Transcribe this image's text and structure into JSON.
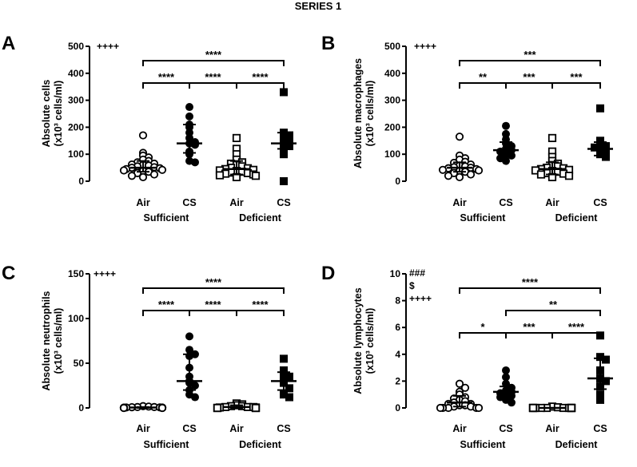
{
  "figure": {
    "title": "SERIES 1"
  },
  "chart_data": [
    {
      "panel": "A",
      "type": "scatter",
      "ylabel_line1": "Absolute cells",
      "ylabel_line2": "(x10³ cells/ml)",
      "ylim": [
        0,
        500
      ],
      "yticks": [
        0,
        100,
        200,
        300,
        400,
        500
      ],
      "x_labels": [
        "Air",
        "CS",
        "Air",
        "CS"
      ],
      "group_labels": [
        "Sufficient",
        "Deficient"
      ],
      "corner_annotations": [
        "++++"
      ],
      "series": [
        {
          "marker": "open-circle",
          "median": 50,
          "lower": 35,
          "upper": 75,
          "values": [
            170,
            105,
            95,
            88,
            80,
            75,
            70,
            65,
            62,
            60,
            58,
            55,
            52,
            50,
            48,
            45,
            42,
            40,
            38,
            35,
            30,
            25,
            20,
            15
          ]
        },
        {
          "marker": "filled-circle",
          "median": 140,
          "lower": 105,
          "upper": 210,
          "values": [
            275,
            240,
            210,
            200,
            180,
            160,
            145,
            140,
            135,
            110,
            100,
            75,
            70
          ]
        },
        {
          "marker": "open-square",
          "median": 45,
          "lower": 25,
          "upper": 75,
          "values": [
            160,
            120,
            100,
            80,
            70,
            65,
            60,
            55,
            50,
            48,
            45,
            42,
            40,
            38,
            35,
            32,
            30,
            28,
            25,
            22,
            20,
            15
          ]
        },
        {
          "marker": "filled-square",
          "median": 140,
          "lower": 120,
          "upper": 180,
          "values": [
            330,
            180,
            170,
            160,
            150,
            140,
            130,
            115,
            100,
            0
          ]
        }
      ],
      "brackets": [
        {
          "from": 0,
          "to": 3,
          "level": 4,
          "label": "****"
        },
        {
          "from": 0,
          "to": 1,
          "level": 3,
          "label": "****"
        },
        {
          "from": 1,
          "to": 2,
          "level": 3,
          "label": "****"
        },
        {
          "from": 2,
          "to": 3,
          "level": 3,
          "label": "****"
        }
      ]
    },
    {
      "panel": "B",
      "type": "scatter",
      "ylabel_line1": "Absolute macrophages",
      "ylabel_line2": "(x10³ cells/ml)",
      "ylim": [
        0,
        500
      ],
      "yticks": [
        0,
        100,
        200,
        300,
        400,
        500
      ],
      "x_labels": [
        "Air",
        "CS",
        "Air",
        "CS"
      ],
      "group_labels": [
        "Sufficient",
        "Deficient"
      ],
      "corner_annotations": [
        "++++"
      ],
      "series": [
        {
          "marker": "open-circle",
          "median": 50,
          "lower": 35,
          "upper": 70,
          "values": [
            165,
            95,
            85,
            80,
            72,
            68,
            62,
            58,
            55,
            52,
            50,
            48,
            45,
            42,
            40,
            38,
            35,
            30,
            25,
            20,
            15
          ]
        },
        {
          "marker": "filled-circle",
          "median": 115,
          "lower": 90,
          "upper": 145,
          "values": [
            205,
            175,
            155,
            140,
            130,
            120,
            115,
            110,
            100,
            95,
            85,
            75
          ]
        },
        {
          "marker": "open-square",
          "median": 45,
          "lower": 25,
          "upper": 70,
          "values": [
            160,
            110,
            90,
            75,
            65,
            60,
            55,
            50,
            48,
            45,
            42,
            40,
            38,
            35,
            30,
            28,
            25,
            20,
            15
          ]
        },
        {
          "marker": "filled-square",
          "median": 120,
          "lower": 95,
          "upper": 145,
          "values": [
            270,
            150,
            140,
            130,
            125,
            120,
            110,
            100,
            90
          ]
        }
      ],
      "brackets": [
        {
          "from": 0,
          "to": 3,
          "level": 4,
          "label": "***"
        },
        {
          "from": 0,
          "to": 1,
          "level": 3,
          "label": "**"
        },
        {
          "from": 1,
          "to": 2,
          "level": 3,
          "label": "***"
        },
        {
          "from": 2,
          "to": 3,
          "level": 3,
          "label": "***"
        }
      ]
    },
    {
      "panel": "C",
      "type": "scatter",
      "ylabel_line1": "Absolute neutrophils",
      "ylabel_line2": "(x10³ cells/ml)",
      "ylim": [
        0,
        150
      ],
      "yticks": [
        0,
        50,
        100,
        150
      ],
      "x_labels": [
        "Air",
        "CS",
        "Air",
        "CS"
      ],
      "group_labels": [
        "Sufficient",
        "Deficient"
      ],
      "corner_annotations": [
        "++++"
      ],
      "series": [
        {
          "marker": "open-circle",
          "median": 0.5,
          "lower": 0,
          "upper": 1,
          "values": [
            2,
            1.5,
            1,
            1,
            0.8,
            0.6,
            0.5,
            0.5,
            0.4,
            0.3,
            0.2,
            0.1,
            0,
            0,
            0,
            0,
            0,
            0,
            0,
            0
          ]
        },
        {
          "marker": "filled-circle",
          "median": 30,
          "lower": 20,
          "upper": 60,
          "values": [
            80,
            65,
            60,
            58,
            45,
            35,
            30,
            28,
            25,
            20,
            15,
            12
          ]
        },
        {
          "marker": "open-square",
          "median": 1,
          "lower": 0,
          "upper": 3,
          "values": [
            5,
            4,
            3,
            2,
            2,
            1,
            1,
            1,
            0.5,
            0.5,
            0,
            0,
            0,
            0,
            0,
            0
          ]
        },
        {
          "marker": "filled-square",
          "median": 30,
          "lower": 20,
          "upper": 40,
          "values": [
            55,
            42,
            38,
            35,
            30,
            28,
            22,
            15,
            12
          ]
        }
      ],
      "brackets": [
        {
          "from": 0,
          "to": 3,
          "level": 4,
          "label": "****"
        },
        {
          "from": 0,
          "to": 1,
          "level": 3,
          "label": "****"
        },
        {
          "from": 1,
          "to": 2,
          "level": 3,
          "label": "****"
        },
        {
          "from": 2,
          "to": 3,
          "level": 3,
          "label": "****"
        }
      ]
    },
    {
      "panel": "D",
      "type": "scatter",
      "ylabel_line1": "Absolute lymphocytes",
      "ylabel_line2": "(x10³ cells/ml)",
      "ylim": [
        0,
        10
      ],
      "yticks": [
        0,
        2,
        4,
        6,
        8,
        10
      ],
      "x_labels": [
        "Air",
        "CS",
        "Air",
        "CS"
      ],
      "group_labels": [
        "Sufficient",
        "Deficient"
      ],
      "corner_annotations": [
        "###",
        "$",
        "++++"
      ],
      "series": [
        {
          "marker": "open-circle",
          "median": 0.4,
          "lower": 0.1,
          "upper": 0.9,
          "values": [
            1.8,
            1.5,
            1.2,
            1.0,
            0.8,
            0.7,
            0.6,
            0.5,
            0.4,
            0.3,
            0.3,
            0.2,
            0.2,
            0.1,
            0.1,
            0,
            0,
            0,
            0,
            0
          ]
        },
        {
          "marker": "filled-circle",
          "median": 1.2,
          "lower": 0.9,
          "upper": 1.6,
          "values": [
            2.8,
            2.3,
            1.8,
            1.5,
            1.3,
            1.2,
            1.1,
            1.0,
            0.9,
            0.8,
            0.6,
            0.4
          ]
        },
        {
          "marker": "open-square",
          "median": 0,
          "lower": 0,
          "upper": 0,
          "values": [
            0.1,
            0.05,
            0,
            0,
            0,
            0,
            0,
            0,
            0,
            0,
            0,
            0,
            0,
            0,
            0,
            0
          ]
        },
        {
          "marker": "filled-square",
          "median": 2.2,
          "lower": 1.4,
          "upper": 3.7,
          "values": [
            5.4,
            3.8,
            3.6,
            2.8,
            2.2,
            2.0,
            1.6,
            1.0,
            0.6
          ]
        }
      ],
      "brackets": [
        {
          "from": 0,
          "to": 3,
          "level": 4,
          "label": "****"
        },
        {
          "from": 1,
          "to": 3,
          "level": 3,
          "label": "**"
        },
        {
          "from": 0,
          "to": 1,
          "level": 2,
          "label": "*"
        },
        {
          "from": 1,
          "to": 2,
          "level": 2,
          "label": "***"
        },
        {
          "from": 2,
          "to": 3,
          "level": 2,
          "label": "****"
        }
      ]
    }
  ]
}
